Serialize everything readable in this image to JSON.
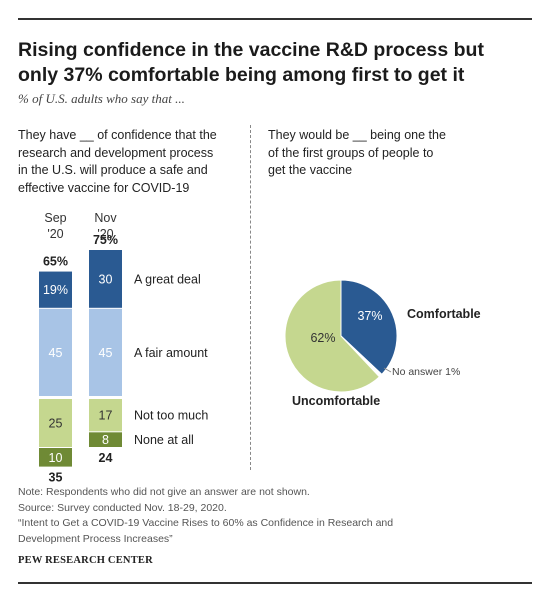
{
  "title_line1": "Rising confidence in the vaccine R&D process but",
  "title_line2": "only 37% comfortable being among first to get it",
  "subtitle": "% of U.S. adults who say that ...",
  "left_question": [
    "They have __ of confidence that the",
    "research and development process",
    "in the U.S. will produce a safe and",
    "effective vaccine for COVID-19"
  ],
  "right_question": [
    "They would be __ being one the",
    "of the first groups of people to",
    "get the vaccine"
  ],
  "chart_data": [
    {
      "type": "bar",
      "stacked": true,
      "categories": [
        "Sep '20",
        "Nov '20"
      ],
      "category_labels": [
        [
          "Sep",
          "'20"
        ],
        [
          "Nov",
          "'20"
        ]
      ],
      "series": [
        {
          "name": "A great deal",
          "values": [
            19,
            30
          ],
          "labels": [
            "19%",
            "30"
          ],
          "color": "#2a5a92"
        },
        {
          "name": "A fair amount",
          "values": [
            45,
            45
          ],
          "labels": [
            "45",
            "45"
          ],
          "color": "#a8c4e6"
        },
        {
          "name": "Not too much",
          "values": [
            25,
            17
          ],
          "labels": [
            "25",
            "17"
          ],
          "color": "#c5d78f"
        },
        {
          "name": "None at all",
          "values": [
            10,
            8
          ],
          "labels": [
            "10",
            "8"
          ],
          "color": "#6f8a35"
        }
      ],
      "positive_totals": [
        "65%",
        "75%"
      ],
      "negative_totals": [
        "35",
        "24"
      ]
    },
    {
      "type": "pie",
      "slices": [
        {
          "name": "Comfortable",
          "value": 37,
          "label": "37%",
          "color": "#2a5a92"
        },
        {
          "name": "No answer",
          "value": 1,
          "label": "No answer 1%",
          "color": "#ffffff"
        },
        {
          "name": "Uncomfortable",
          "value": 62,
          "label": "62%",
          "color": "#c5d78f"
        }
      ]
    }
  ],
  "notes": [
    "Note: Respondents who did not give an answer are not shown.",
    "Source: Survey conducted Nov. 18-29, 2020.",
    "“Intent to Get a COVID-19 Vaccine Rises to 60% as Confidence in Research and",
    "Development Process Increases”"
  ],
  "source_label": "PEW RESEARCH CENTER"
}
